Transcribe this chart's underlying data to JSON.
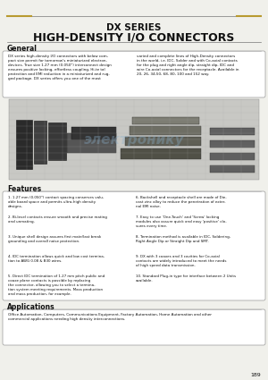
{
  "title_line1": "DX SERIES",
  "title_line2": "HIGH-DENSITY I/O CONNECTORS",
  "section_general": "General",
  "general_text_left": "DX series high-density I/O connectors with below com-\npact size permit for tomorrow's miniaturized electron-\ndevices. True size 1.27 mm (0.050\") interconnect design\nensures positive locking, effortless coupling, Hi-te tal\nprotection and EMI reduction in a miniaturized and rug-\nged package. DX series offers you one of the most",
  "general_text_right": "varied and complete lines of High-Density connectors\nin the world, i.e. IDC, Solder and with Co-axial contacts\nfor the plug and right angle dip, straight dip, IDC and\nwire Co-axial connectors for the receptacle. Available in\n20, 26, 34,50, 68, 80, 100 and 152 way.",
  "section_features": "Features",
  "features_left": [
    "1.27 mm (0.050\") contact spacing conserves valu-\nable board space and permits ultra-high density\ndesigns.",
    "Bi-level contacts ensure smooth and precise mating\nand unmating.",
    "Unique shell design assures first mate/last break\ngrounding and overall noise protection.",
    "IDC termination allows quick and low cost termina-\ntion to AWG 0.08 & B30 wires.",
    "Direct IDC termination of 1.27 mm pitch public and\ncoaxe plane contacts is possible by replacing\nthe connector, allowing you to select a termina-\ntion system meeting requirements. Mass production\nand mass production, for example."
  ],
  "features_right": [
    "Backshell and receptacle shell are made of Die-\ncast zinc alloy to reduce the penetration of exter-\nnal EMI noise.",
    "Easy to use 'One-Touch' and 'Screw' locking\nmodules also assure quick and easy 'positive' clo-\nsures every time.",
    "Termination method is available in IDC, Soldering,\nRight Angle Dip or Straight Dip and SMT.",
    "DX with 3 coaxes and 3 cavities for Co-axial\ncontacts are widely introduced to meet the needs\nof high speed data transmission.",
    "Standard Plug-in type for interface between 2 Units\navailable."
  ],
  "section_applications": "Applications",
  "applications_text": "Office Automation, Computers, Communications Equipment, Factory Automation, Home Automation and other\ncommercial applications needing high density interconnections.",
  "page_number": "189",
  "bg_color": "#f0f0eb",
  "title_sep_color": "#b89a30",
  "text_color": "#111111",
  "box_bg": "#ffffff",
  "box_edge": "#999999"
}
